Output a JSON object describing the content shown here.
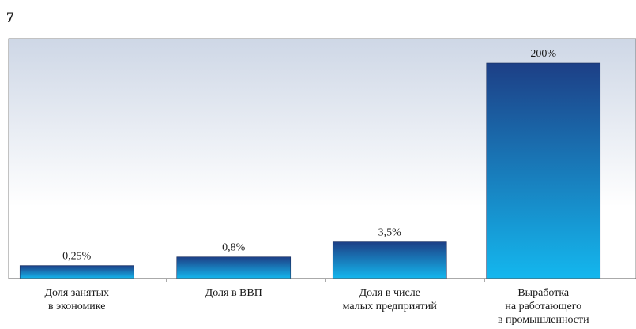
{
  "figure_number": "7",
  "chart_data": {
    "type": "bar",
    "categories": [
      [
        "Доля занятых",
        "в экономике"
      ],
      [
        "Доля в ВВП"
      ],
      [
        "Доля в числе",
        "малых предприятий"
      ],
      [
        "Выработка",
        "на работающего",
        "в промышленности"
      ]
    ],
    "values": [
      0.25,
      0.8,
      3.5,
      200
    ],
    "value_labels": [
      "0,25%",
      "0,8%",
      "3,5%",
      "200%"
    ],
    "scale_note": "non-linear visual scale; bars are not proportional to values",
    "display_levels": [
      0.06,
      0.1,
      0.17,
      1.0
    ],
    "grid": false,
    "legend": "none",
    "colors": {
      "bar_top": "#1d3f86",
      "bar_bottom": "#14b7ee",
      "plot_bg_top": "#ced7e6",
      "plot_bg_bottom": "#ffffff",
      "axis": "#555555",
      "border": "#666666"
    }
  }
}
